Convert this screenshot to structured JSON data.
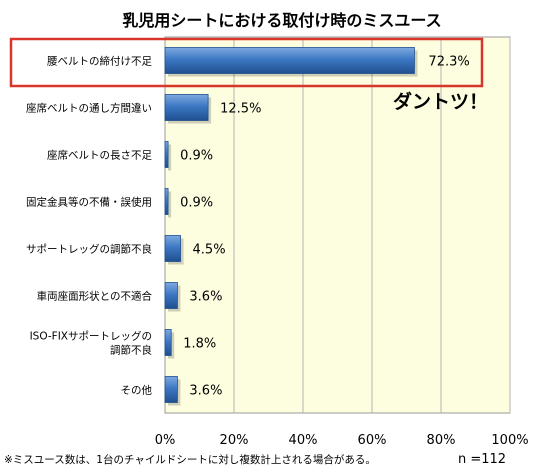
{
  "chart_data": {
    "type": "bar",
    "orientation": "horizontal",
    "title": "乳児用シートにおける取付け時のミスユース",
    "categories": [
      [
        "腰ベルトの締付け不足"
      ],
      [
        "座席ベルトの通し方間違い"
      ],
      [
        "座席ベルトの長さ不足"
      ],
      [
        "固定金具等の不備・誤使用"
      ],
      [
        "サポートレッグの調節不良"
      ],
      [
        "車両座面形状との不適合"
      ],
      [
        "ISO-FIXサポートレッグの",
        "調節不良"
      ],
      [
        "その他"
      ]
    ],
    "values": [
      72.3,
      12.5,
      0.9,
      0.9,
      4.5,
      3.6,
      1.8,
      3.6
    ],
    "value_labels": [
      "72.3%",
      "12.5%",
      "0.9%",
      "0.9%",
      "4.5%",
      "3.6%",
      "1.8%",
      "3.6%"
    ],
    "xlim": [
      0,
      100
    ],
    "xticks": [
      "0%",
      "20%",
      "40%",
      "60%",
      "80%",
      "100%"
    ],
    "grid": true,
    "highlight_index": 0,
    "annotation": "ダントツ！",
    "sample_size": "n =112",
    "footnote": "※ミスユース数は、1台のチャイルドシートに対し複数計上される場合がある。",
    "colors": {
      "plot_background": "#fdfde0",
      "bar": "#3d78c4",
      "bar_dark": "#1f4f8f",
      "bar_light": "#7ea9df",
      "highlight_box": "#d9362b",
      "grid": "#b5b5b5"
    }
  }
}
